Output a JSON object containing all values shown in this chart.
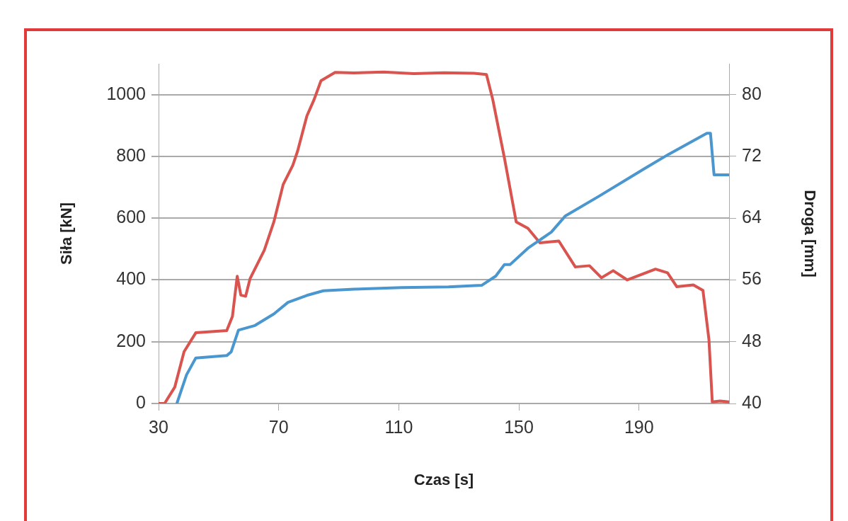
{
  "chart_data": {
    "type": "line",
    "xlabel": "Czas [s]",
    "ylabel": "Siła [kN]",
    "y2label": "Droga [mm]",
    "xlim": [
      30,
      220
    ],
    "xticks": [
      30,
      70,
      110,
      150,
      190
    ],
    "ylim": [
      0,
      1100
    ],
    "yticks": [
      0,
      200,
      400,
      600,
      800,
      1000
    ],
    "y2lim": [
      40,
      84
    ],
    "y2ticks": [
      40,
      48,
      56,
      64,
      72,
      80
    ],
    "grid": "y",
    "marker": "none",
    "series": [
      {
        "color": "#d9534f",
        "x": [
          30,
          32,
          35.4,
          38.5,
          42.4,
          52.7,
          54.6,
          56.2,
          57.4,
          59,
          60.5,
          65.2,
          68.4,
          71.5,
          74.7,
          76.3,
          79.4,
          81.8,
          84.1,
          88.8,
          95,
          105,
          115,
          125,
          135,
          139.2,
          141.3,
          145.2,
          149.1,
          153,
          157,
          163.3,
          168.8,
          173.5,
          177.5,
          181.4,
          186.1,
          195.5,
          199.5,
          202.6,
          208.1,
          211.3,
          213.3,
          214.4,
          217,
          220
        ],
        "values": [
          0,
          0,
          53,
          168,
          229,
          236,
          282,
          412,
          351,
          347,
          405,
          496,
          588,
          709,
          771,
          817,
          931,
          984,
          1045,
          1072,
          1070,
          1073,
          1068,
          1071,
          1069,
          1065,
          984,
          794,
          588,
          567,
          520,
          526,
          442,
          446,
          407,
          430,
          400,
          435,
          423,
          378,
          384,
          366,
          206,
          5,
          8,
          5
        ]
      },
      {
        "color": "#4a96cf",
        "axis": "y2",
        "x": [
          36.1,
          39.3,
          42.4,
          52.7,
          54.2,
          56.6,
          62.1,
          68.4,
          73.1,
          79.4,
          84.9,
          95.1,
          110.9,
          126.6,
          137.6,
          142.3,
          145.2,
          147.1,
          153,
          160.8,
          165.5,
          176.5,
          192.2,
          200,
          212.6,
          213.8,
          215,
          219.8
        ],
        "values": [
          40,
          43.7,
          45.9,
          46.2,
          46.7,
          49.5,
          50.1,
          51.6,
          53.1,
          54,
          54.6,
          54.8,
          55,
          55.1,
          55.3,
          56.5,
          58,
          58,
          60.1,
          62.2,
          64.3,
          66.8,
          70.5,
          72.3,
          75,
          75,
          69.6,
          69.6
        ]
      }
    ]
  }
}
